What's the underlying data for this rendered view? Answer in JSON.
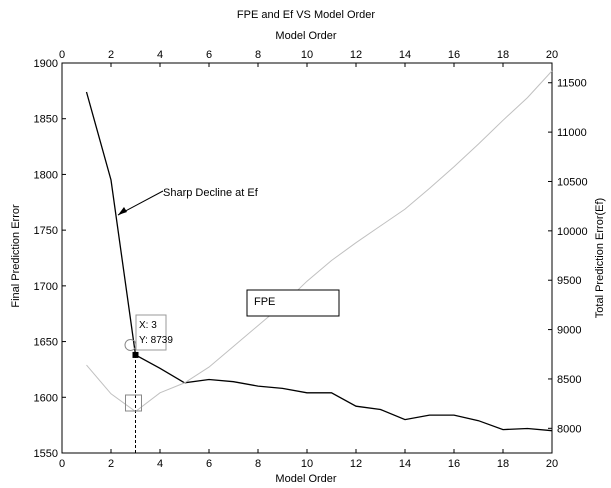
{
  "chart_data": {
    "type": "line",
    "title": "FPE and Ef VS Model Order",
    "xlabel": "Model Order",
    "xlabel_top": "Model Order",
    "ylabel_left": "Final Prediction Error",
    "ylabel_right": "Total Prediction Error(Ef)",
    "xlim": [
      0,
      20
    ],
    "ylim_left": [
      1550,
      1900
    ],
    "ylim_right": [
      7750,
      11700
    ],
    "x_ticks": [
      0,
      2,
      4,
      6,
      8,
      10,
      12,
      14,
      16,
      18,
      20
    ],
    "y_left_ticks": [
      1550,
      1600,
      1650,
      1700,
      1750,
      1800,
      1850,
      1900
    ],
    "y_right_ticks": [
      8000,
      8500,
      9000,
      9500,
      10000,
      10500,
      11000,
      11500
    ],
    "series": [
      {
        "axis": "left",
        "color": "#000000",
        "points": [
          [
            1,
            1874
          ],
          [
            2,
            1795
          ],
          [
            3,
            1638
          ],
          [
            4,
            1626
          ],
          [
            5,
            1613
          ],
          [
            6,
            1616
          ],
          [
            7,
            1614
          ],
          [
            8,
            1610
          ],
          [
            9,
            1608
          ],
          [
            10,
            1604
          ],
          [
            11,
            1604
          ],
          [
            12,
            1592
          ],
          [
            13,
            1589
          ],
          [
            14,
            1580
          ],
          [
            15,
            1584
          ],
          [
            16,
            1584
          ],
          [
            17,
            1579
          ],
          [
            18,
            1571
          ],
          [
            19,
            1572
          ],
          [
            20,
            1570
          ]
        ]
      },
      {
        "axis": "right",
        "color": "#c0c0c0",
        "points": [
          [
            1,
            8640
          ],
          [
            2,
            8350
          ],
          [
            3,
            8170
          ],
          [
            4,
            8360
          ],
          [
            5,
            8460
          ],
          [
            6,
            8620
          ],
          [
            7,
            8830
          ],
          [
            8,
            9040
          ],
          [
            9,
            9250
          ],
          [
            10,
            9490
          ],
          [
            11,
            9700
          ],
          [
            12,
            9880
          ],
          [
            13,
            10050
          ],
          [
            14,
            10220
          ],
          [
            15,
            10430
          ],
          [
            16,
            10650
          ],
          [
            17,
            10880
          ],
          [
            18,
            11120
          ],
          [
            19,
            11350
          ],
          [
            20,
            11620
          ]
        ]
      }
    ],
    "annotations": {
      "arrow_text": "Sharp Decline at Ef",
      "datatip_x": "X: 3",
      "datatip_y": "Y: 8739",
      "textbox": "FPE",
      "marked_x": 3,
      "marked_y_left": 1638
    }
  }
}
